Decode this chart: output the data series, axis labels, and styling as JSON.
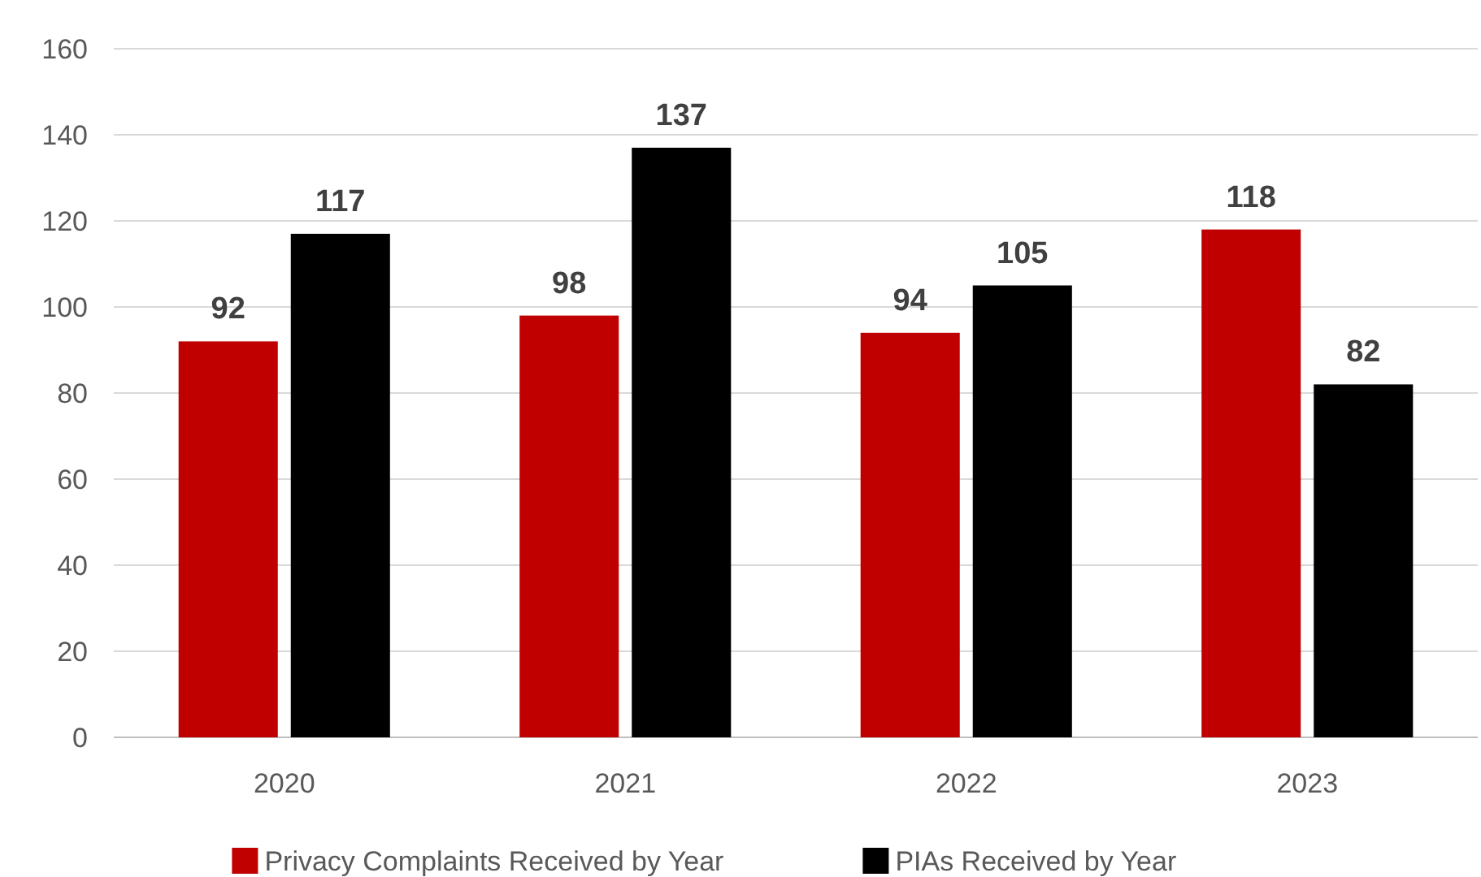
{
  "chart_data": {
    "type": "bar",
    "categories": [
      "2020",
      "2021",
      "2022",
      "2023"
    ],
    "series": [
      {
        "name": "Privacy Complaints Received by Year",
        "color": "#c00000",
        "values": [
          92,
          98,
          94,
          118
        ]
      },
      {
        "name": "PIAs Received by Year",
        "color": "#000000",
        "values": [
          117,
          137,
          105,
          82
        ]
      }
    ],
    "ylim": [
      0,
      160
    ],
    "yticks": [
      0,
      20,
      40,
      60,
      80,
      100,
      120,
      140,
      160
    ],
    "grid": "y",
    "legend": "bottom",
    "data_labels": true
  }
}
